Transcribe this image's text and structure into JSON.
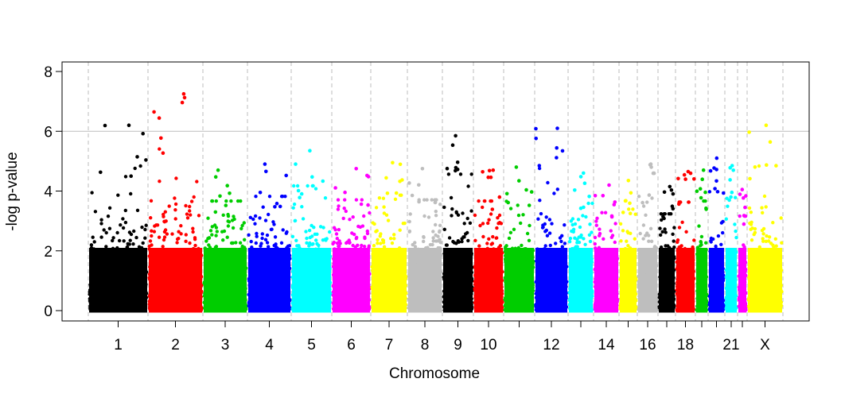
{
  "chart_data": {
    "type": "scatter",
    "subtype": "manhattan",
    "title": "",
    "xlabel": "Chromosome",
    "ylabel": "-log p-value",
    "ylim": [
      0,
      8.3
    ],
    "y_ticks": [
      "0",
      "2",
      "4",
      "6",
      "8"
    ],
    "threshold": 6,
    "grid": "vertical dashed chromosome dividers",
    "chromosomes": [
      {
        "name": "1",
        "tick_label": "1",
        "color": "#000000",
        "max": 6.2
      },
      {
        "name": "2",
        "tick_label": "2",
        "color": "#ff0000",
        "max": 7.25
      },
      {
        "name": "3",
        "tick_label": "3",
        "color": "#00cd00",
        "max": 4.7
      },
      {
        "name": "4",
        "tick_label": "4",
        "color": "#0000ff",
        "max": 4.9
      },
      {
        "name": "5",
        "tick_label": "5",
        "color": "#00ffff",
        "max": 5.35
      },
      {
        "name": "6",
        "tick_label": "6",
        "color": "#ff00ff",
        "max": 4.75
      },
      {
        "name": "7",
        "tick_label": "7",
        "color": "#ffff00",
        "max": 4.95
      },
      {
        "name": "8",
        "tick_label": "8",
        "color": "#bebebe",
        "max": 4.75
      },
      {
        "name": "9",
        "tick_label": "9",
        "color": "#000000",
        "max": 5.85
      },
      {
        "name": "10",
        "tick_label": "10",
        "color": "#ff0000",
        "max": 4.7
      },
      {
        "name": "11",
        "tick_label": "",
        "color": "#00cd00",
        "max": 4.8
      },
      {
        "name": "12",
        "tick_label": "12",
        "color": "#0000ff",
        "max": 6.1
      },
      {
        "name": "13",
        "tick_label": "",
        "color": "#00ffff",
        "max": 4.6
      },
      {
        "name": "14",
        "tick_label": "14",
        "color": "#ff00ff",
        "max": 4.2
      },
      {
        "name": "15",
        "tick_label": "",
        "color": "#ffff00",
        "max": 4.35
      },
      {
        "name": "16",
        "tick_label": "16",
        "color": "#bebebe",
        "max": 4.9
      },
      {
        "name": "17",
        "tick_label": "",
        "color": "#000000",
        "max": 4.15
      },
      {
        "name": "18",
        "tick_label": "18",
        "color": "#ff0000",
        "max": 4.65
      },
      {
        "name": "19",
        "tick_label": "",
        "color": "#00cd00",
        "max": 4.7
      },
      {
        "name": "20",
        "tick_label": "",
        "color": "#0000ff",
        "max": 5.1
      },
      {
        "name": "21",
        "tick_label": "21",
        "color": "#00ffff",
        "max": 4.85
      },
      {
        "name": "22",
        "tick_label": "",
        "color": "#ff00ff",
        "max": 4.05
      },
      {
        "name": "X",
        "tick_label": "X",
        "color": "#ffff00",
        "max": 6.2
      }
    ]
  }
}
